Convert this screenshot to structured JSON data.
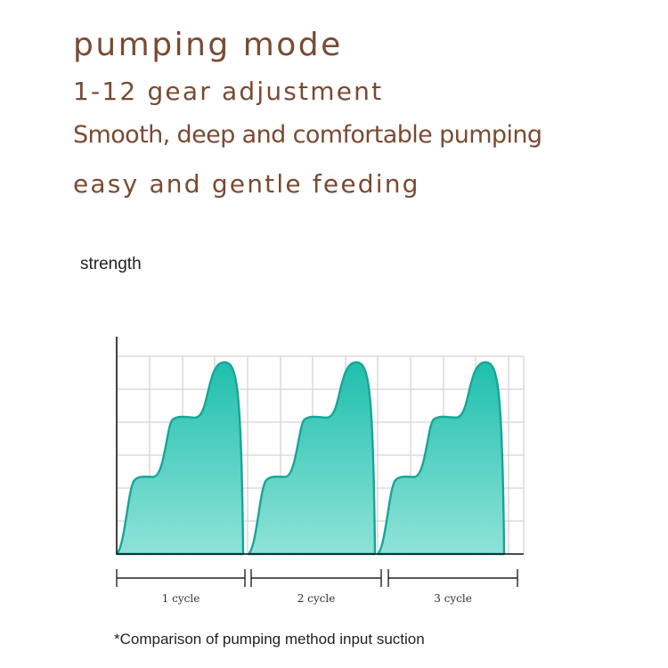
{
  "header": {
    "title": "pumping mode",
    "line2": "1-12 gear adjustment",
    "line3": "Smooth, deep and comfortable pumping",
    "line4": "easy and gentle feeding"
  },
  "colors": {
    "heading": "#7a4a32",
    "fill_top": "#1fbfad",
    "fill_bottom": "#8fe3d8",
    "stroke": "#17a597",
    "grid": "#d4d4d4"
  },
  "chart_data": {
    "type": "area",
    "ylabel": "strength",
    "grid": true,
    "cycles": [
      "1 cycle",
      "2 cycle",
      "3 cycle"
    ],
    "levels": [
      0.39,
      0.69,
      0.97
    ],
    "footnote": "*Comparison of pumping method input suction"
  }
}
